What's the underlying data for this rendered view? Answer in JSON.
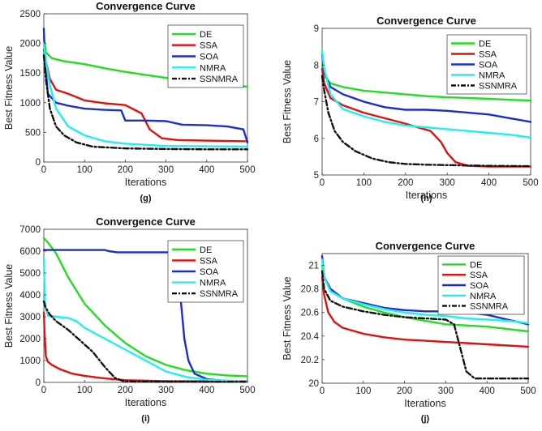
{
  "colors": {
    "DE": "#22dd22",
    "SSA": "#dd1111",
    "SOA": "#1a2ecc",
    "NMRA": "#22eeee",
    "SSNMRA": "#111111"
  },
  "chart_data": [
    {
      "type": "line",
      "title": "Convergence Curve",
      "caption": "(g)",
      "xlabel": "Iterations",
      "ylabel": "Best Fitness Value",
      "xlim": [
        0,
        500
      ],
      "ylim": [
        0,
        2500
      ],
      "xticks": [
        "0",
        "100",
        "200",
        "300",
        "400",
        "500"
      ],
      "yticks": [
        "0",
        "500",
        "1000",
        "1500",
        "2000",
        "2500"
      ],
      "legend": "top-right",
      "series": [
        {
          "name": "DE",
          "x": [
            0,
            5,
            20,
            50,
            100,
            150,
            200,
            250,
            300,
            350,
            400,
            450,
            500
          ],
          "y": [
            2100,
            1850,
            1750,
            1700,
            1650,
            1580,
            1520,
            1470,
            1420,
            1380,
            1350,
            1310,
            1270
          ]
        },
        {
          "name": "SSA",
          "x": [
            0,
            5,
            15,
            30,
            60,
            100,
            150,
            200,
            240,
            260,
            290,
            330,
            400,
            500
          ],
          "y": [
            1900,
            1700,
            1400,
            1220,
            1150,
            1040,
            990,
            960,
            820,
            550,
            400,
            370,
            360,
            350
          ]
        },
        {
          "name": "SOA",
          "x": [
            0,
            3,
            10,
            30,
            60,
            100,
            150,
            190,
            200,
            250,
            300,
            340,
            400,
            450,
            490,
            500
          ],
          "y": [
            2250,
            1700,
            1150,
            1000,
            950,
            900,
            880,
            870,
            700,
            700,
            690,
            630,
            620,
            600,
            550,
            330
          ]
        },
        {
          "name": "NMRA",
          "x": [
            0,
            5,
            15,
            30,
            60,
            100,
            150,
            200,
            300,
            400,
            500
          ],
          "y": [
            2000,
            1700,
            1300,
            900,
            600,
            450,
            350,
            310,
            270,
            265,
            260
          ]
        },
        {
          "name": "SSNMRA",
          "x": [
            0,
            5,
            15,
            30,
            50,
            80,
            120,
            200,
            300,
            400,
            500
          ],
          "y": [
            1800,
            1400,
            900,
            600,
            450,
            330,
            260,
            230,
            220,
            215,
            215
          ]
        }
      ]
    },
    {
      "type": "line",
      "title": "Convergence Curve",
      "caption": "(h)",
      "xlabel": "Iterations",
      "ylabel": "Best Fitness Value",
      "xlim": [
        0,
        500
      ],
      "ylim": [
        5,
        9
      ],
      "xticks": [
        "0",
        "100",
        "200",
        "300",
        "400",
        "500"
      ],
      "yticks": [
        "5",
        "6",
        "7",
        "8",
        "9"
      ],
      "legend": "top-right",
      "series": [
        {
          "name": "DE",
          "x": [
            0,
            5,
            20,
            50,
            100,
            150,
            200,
            250,
            300,
            350,
            400,
            450,
            500
          ],
          "y": [
            8.0,
            7.7,
            7.5,
            7.4,
            7.3,
            7.25,
            7.2,
            7.15,
            7.12,
            7.1,
            7.08,
            7.05,
            7.03
          ]
        },
        {
          "name": "SSA",
          "x": [
            0,
            5,
            20,
            50,
            100,
            150,
            200,
            230,
            260,
            285,
            300,
            320,
            350,
            400,
            500
          ],
          "y": [
            7.9,
            7.5,
            7.1,
            6.9,
            6.7,
            6.55,
            6.4,
            6.3,
            6.2,
            5.9,
            5.6,
            5.35,
            5.25,
            5.23,
            5.23
          ]
        },
        {
          "name": "SOA",
          "x": [
            0,
            5,
            20,
            50,
            100,
            150,
            200,
            250,
            300,
            350,
            400,
            450,
            500
          ],
          "y": [
            8.3,
            7.8,
            7.4,
            7.2,
            7.0,
            6.85,
            6.78,
            6.78,
            6.75,
            6.7,
            6.65,
            6.55,
            6.45
          ]
        },
        {
          "name": "NMRA",
          "x": [
            0,
            5,
            20,
            50,
            100,
            150,
            200,
            250,
            300,
            350,
            400,
            450,
            500
          ],
          "y": [
            8.4,
            7.9,
            7.2,
            6.8,
            6.6,
            6.45,
            6.35,
            6.3,
            6.25,
            6.2,
            6.15,
            6.1,
            6.02
          ]
        },
        {
          "name": "SSNMRA",
          "x": [
            0,
            5,
            15,
            30,
            50,
            80,
            120,
            160,
            200,
            250,
            300,
            400,
            500
          ],
          "y": [
            7.7,
            7.3,
            6.7,
            6.2,
            5.9,
            5.65,
            5.45,
            5.35,
            5.3,
            5.28,
            5.27,
            5.25,
            5.24
          ]
        }
      ]
    },
    {
      "type": "line",
      "title": "Convergence Curve",
      "caption": "(i)",
      "xlabel": "Iterations",
      "ylabel": "Best Fitness Value",
      "xlim": [
        0,
        500
      ],
      "ylim": [
        0,
        7000
      ],
      "xticks": [
        "0",
        "100",
        "200",
        "300",
        "400",
        "500"
      ],
      "yticks": [
        "0",
        "1000",
        "2000",
        "3000",
        "4000",
        "5000",
        "6000",
        "7000"
      ],
      "legend": "top-right",
      "series": [
        {
          "name": "DE",
          "x": [
            0,
            10,
            30,
            60,
            100,
            150,
            200,
            250,
            300,
            350,
            400,
            450,
            500
          ],
          "y": [
            6600,
            6400,
            5900,
            4800,
            3600,
            2600,
            1800,
            1200,
            800,
            550,
            400,
            320,
            280
          ]
        },
        {
          "name": "SSA",
          "x": [
            0,
            2,
            5,
            10,
            20,
            40,
            70,
            100,
            150,
            200,
            300,
            400,
            500
          ],
          "y": [
            3200,
            2200,
            1200,
            950,
            800,
            600,
            400,
            300,
            180,
            100,
            60,
            50,
            50
          ]
        },
        {
          "name": "SOA",
          "x": [
            0,
            100,
            150,
            160,
            180,
            250,
            320,
            335,
            345,
            355,
            370,
            400,
            450,
            500
          ],
          "y": [
            6050,
            6050,
            6050,
            6000,
            5950,
            5950,
            5950,
            4000,
            2000,
            1000,
            400,
            150,
            60,
            50
          ]
        },
        {
          "name": "NMRA",
          "x": [
            0,
            3,
            10,
            30,
            60,
            80,
            100,
            150,
            200,
            250,
            300,
            350,
            400,
            450,
            500
          ],
          "y": [
            5700,
            3500,
            3050,
            3000,
            2950,
            2800,
            2500,
            2000,
            1500,
            1000,
            500,
            250,
            120,
            80,
            60
          ]
        },
        {
          "name": "SSNMRA",
          "x": [
            0,
            5,
            15,
            30,
            60,
            90,
            120,
            150,
            175,
            195,
            220,
            300,
            400,
            500
          ],
          "y": [
            3700,
            3400,
            3100,
            2800,
            2400,
            1900,
            1400,
            700,
            200,
            60,
            40,
            30,
            30,
            30
          ]
        }
      ]
    },
    {
      "type": "line",
      "title": "Convergence Curve",
      "caption": "(j)",
      "xlabel": "Iterations",
      "ylabel": "Best Fitness Value",
      "xlim": [
        0,
        500
      ],
      "ylim": [
        20,
        21.1
      ],
      "xticks": [
        "0",
        "100",
        "200",
        "300",
        "400",
        "500"
      ],
      "yticks": [
        "20",
        "20.2",
        "20.4",
        "20.6",
        "20.8",
        "21"
      ],
      "legend": "top-right",
      "series": [
        {
          "name": "DE",
          "x": [
            0,
            5,
            20,
            50,
            100,
            150,
            200,
            250,
            300,
            350,
            400,
            450,
            500
          ],
          "y": [
            21.0,
            20.9,
            20.8,
            20.72,
            20.65,
            20.6,
            20.56,
            20.53,
            20.5,
            20.49,
            20.48,
            20.46,
            20.44
          ]
        },
        {
          "name": "SSA",
          "x": [
            0,
            5,
            15,
            30,
            50,
            80,
            100,
            150,
            200,
            250,
            300,
            350,
            400,
            450,
            500
          ],
          "y": [
            20.9,
            20.75,
            20.6,
            20.52,
            20.47,
            20.44,
            20.42,
            20.39,
            20.37,
            20.36,
            20.35,
            20.34,
            20.33,
            20.32,
            20.31
          ]
        },
        {
          "name": "SOA",
          "x": [
            0,
            5,
            20,
            50,
            100,
            150,
            200,
            250,
            300,
            350,
            400,
            450,
            500
          ],
          "y": [
            21.08,
            20.9,
            20.8,
            20.72,
            20.68,
            20.64,
            20.62,
            20.61,
            20.61,
            20.6,
            20.58,
            20.54,
            20.5
          ]
        },
        {
          "name": "NMRA",
          "x": [
            0,
            5,
            20,
            50,
            100,
            150,
            200,
            250,
            300,
            350,
            400,
            450,
            500
          ],
          "y": [
            21.05,
            20.9,
            20.78,
            20.72,
            20.67,
            20.63,
            20.6,
            20.58,
            20.57,
            20.55,
            20.54,
            20.53,
            20.51
          ]
        },
        {
          "name": "SSNMRA",
          "x": [
            0,
            5,
            20,
            50,
            100,
            150,
            200,
            250,
            300,
            320,
            335,
            350,
            370,
            400,
            450,
            500
          ],
          "y": [
            20.95,
            20.8,
            20.7,
            20.65,
            20.61,
            20.58,
            20.56,
            20.55,
            20.54,
            20.5,
            20.3,
            20.1,
            20.04,
            20.04,
            20.04,
            20.04
          ]
        }
      ]
    }
  ]
}
